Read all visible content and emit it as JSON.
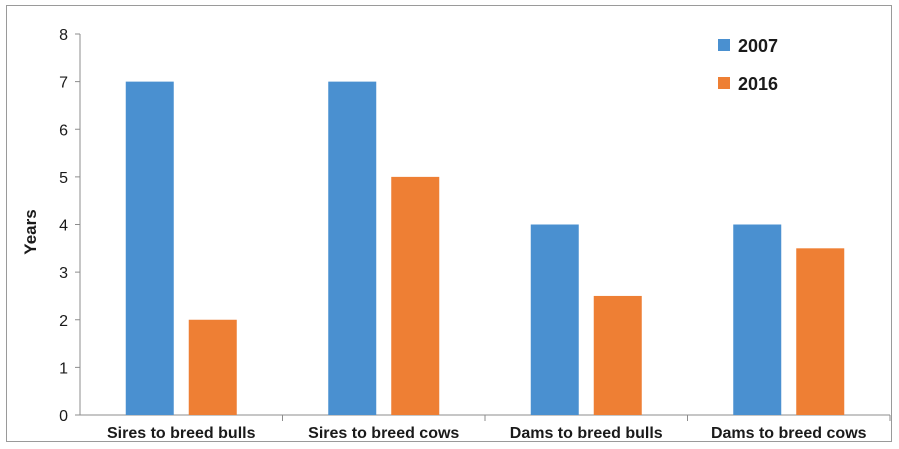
{
  "chart_data": {
    "type": "bar",
    "title": "",
    "xlabel": "",
    "ylabel": "Years",
    "ylim": [
      0,
      8
    ],
    "yticks": [
      0,
      1,
      2,
      3,
      4,
      5,
      6,
      7,
      8
    ],
    "grid": false,
    "legend_position": "top-right",
    "categories": [
      "Sires to breed bulls",
      "Sires to breed cows",
      "Dams to breed bulls",
      "Dams to breed cows"
    ],
    "series": [
      {
        "name": "2007",
        "color": "#4a90d0",
        "values": [
          7,
          7,
          4,
          4
        ]
      },
      {
        "name": "2016",
        "color": "#ee7f34",
        "values": [
          2,
          5,
          2.5,
          3.5
        ]
      }
    ]
  }
}
